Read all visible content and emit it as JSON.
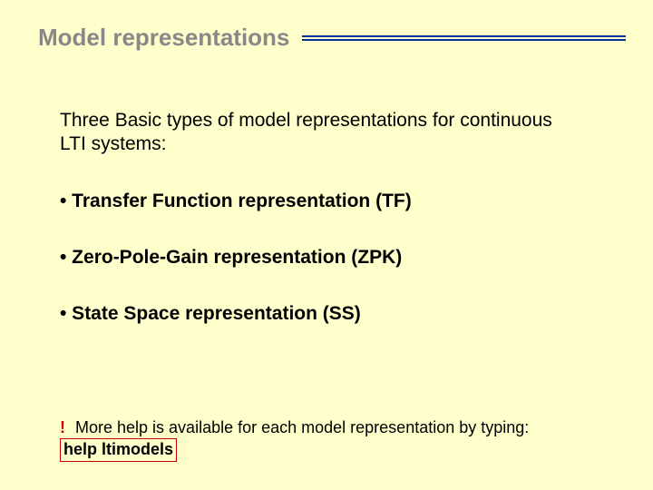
{
  "colors": {
    "background": "#ffffcc",
    "title_text": "#888888",
    "rule": "#003399",
    "body_text": "#000000",
    "accent_red": "#cc0000"
  },
  "typography": {
    "title_fontsize_pt": 20,
    "body_fontsize_pt": 16,
    "footer_fontsize_pt": 13,
    "font_family": "Arial"
  },
  "title": "Model representations",
  "intro": "Three Basic types of model representations for continuous LTI systems:",
  "bullets": [
    "• Transfer Function representation (TF)",
    "• Zero-Pole-Gain representation (ZPK)",
    "• State Space representation (SS)"
  ],
  "footer": {
    "excl": "!",
    "text_before": " More help is available for each model representation by typing:",
    "help_cmd": "help ltimodels"
  }
}
